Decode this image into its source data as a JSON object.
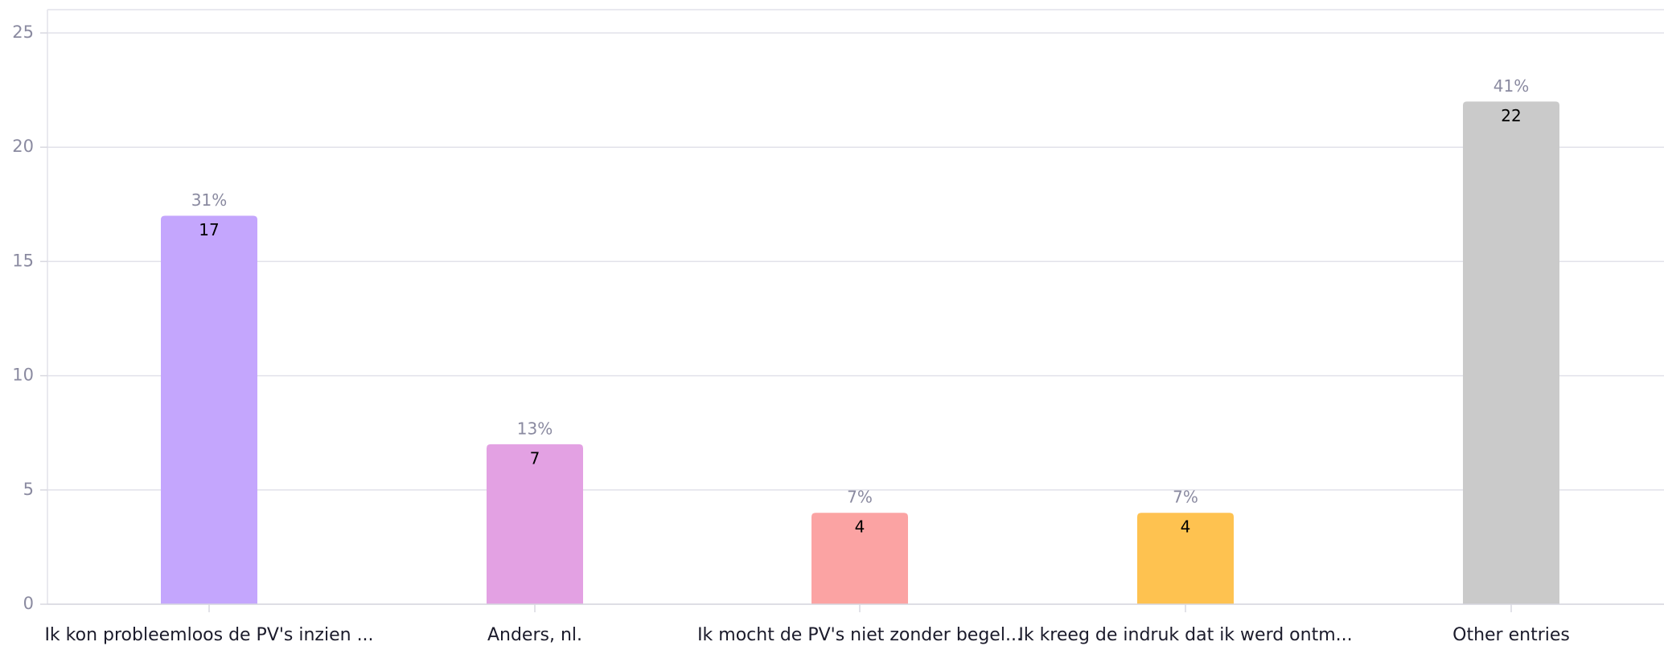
{
  "chart_data": {
    "type": "bar",
    "categories": [
      "Ik kon probleemloos de PV's inzien ...",
      "Anders, nl.",
      "Ik mocht de PV's niet zonder begel...",
      "Ik kreeg de indruk dat ik werd ontm...",
      "Other entries"
    ],
    "values": [
      17,
      7,
      4,
      4,
      22
    ],
    "percent_labels": [
      "31%",
      "13%",
      "7%",
      "7%",
      "41%"
    ],
    "colors": [
      "#c4a6fd",
      "#e3a1e3",
      "#fba3a3",
      "#fec250",
      "#cacaca"
    ],
    "ylim": [
      0,
      25
    ],
    "yticks": [
      0,
      5,
      10,
      15,
      20,
      25
    ],
    "grid": true
  }
}
